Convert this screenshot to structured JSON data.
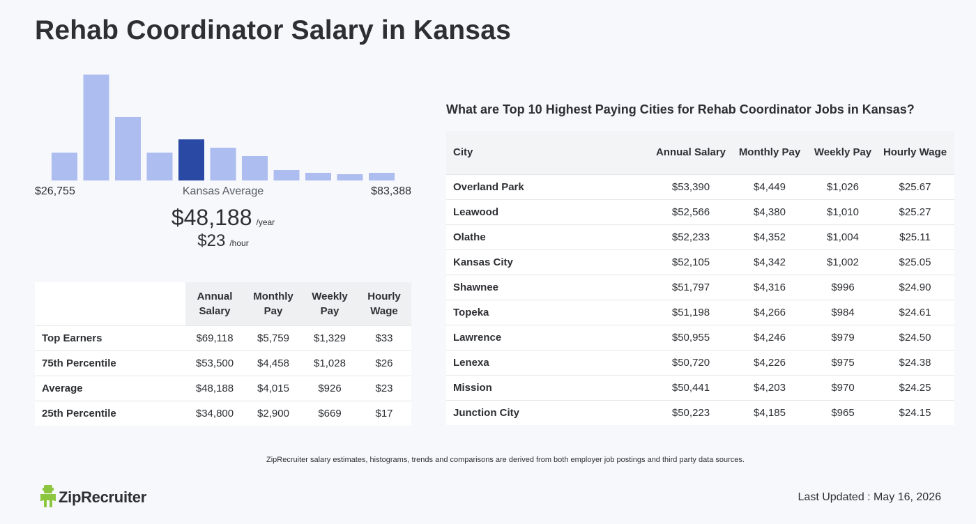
{
  "page": {
    "title": "Rehab Coordinator Salary in Kansas"
  },
  "histogram": {
    "min_label": "$26,755",
    "max_label": "$83,388",
    "mid_label": "Kansas Average",
    "bar_color": "#aebdf0",
    "highlight_color": "#2a49a5",
    "highlight_index": 4,
    "heights": [
      0.26,
      1.0,
      0.6,
      0.26,
      0.39,
      0.31,
      0.23,
      0.1,
      0.07,
      0.06,
      0.07
    ]
  },
  "average": {
    "yearly": "$48,188",
    "yearly_unit": "/year",
    "hourly": "$23",
    "hourly_unit": "/hour"
  },
  "percentiles": {
    "headers": [
      "Annual Salary",
      "Monthly Pay",
      "Weekly Pay",
      "Hourly Wage"
    ],
    "rows": [
      {
        "label": "Top Earners",
        "annual": "$69,118",
        "monthly": "$5,759",
        "weekly": "$1,329",
        "hourly": "$33"
      },
      {
        "label": "75th Percentile",
        "annual": "$53,500",
        "monthly": "$4,458",
        "weekly": "$1,028",
        "hourly": "$26"
      },
      {
        "label": "Average",
        "annual": "$48,188",
        "monthly": "$4,015",
        "weekly": "$926",
        "hourly": "$23"
      },
      {
        "label": "25th Percentile",
        "annual": "$34,800",
        "monthly": "$2,900",
        "weekly": "$669",
        "hourly": "$17"
      }
    ]
  },
  "cities": {
    "title": "What are Top 10 Highest Paying Cities for Rehab Coordinator Jobs in Kansas?",
    "headers": [
      "City",
      "Annual Salary",
      "Monthly Pay",
      "Weekly Pay",
      "Hourly Wage"
    ],
    "rows": [
      {
        "city": "Overland Park",
        "annual": "$53,390",
        "monthly": "$4,449",
        "weekly": "$1,026",
        "hourly": "$25.67"
      },
      {
        "city": "Leawood",
        "annual": "$52,566",
        "monthly": "$4,380",
        "weekly": "$1,010",
        "hourly": "$25.27"
      },
      {
        "city": "Olathe",
        "annual": "$52,233",
        "monthly": "$4,352",
        "weekly": "$1,004",
        "hourly": "$25.11"
      },
      {
        "city": "Kansas City",
        "annual": "$52,105",
        "monthly": "$4,342",
        "weekly": "$1,002",
        "hourly": "$25.05"
      },
      {
        "city": "Shawnee",
        "annual": "$51,797",
        "monthly": "$4,316",
        "weekly": "$996",
        "hourly": "$24.90"
      },
      {
        "city": "Topeka",
        "annual": "$51,198",
        "monthly": "$4,266",
        "weekly": "$984",
        "hourly": "$24.61"
      },
      {
        "city": "Lawrence",
        "annual": "$50,955",
        "monthly": "$4,246",
        "weekly": "$979",
        "hourly": "$24.50"
      },
      {
        "city": "Lenexa",
        "annual": "$50,720",
        "monthly": "$4,226",
        "weekly": "$975",
        "hourly": "$24.38"
      },
      {
        "city": "Mission",
        "annual": "$50,441",
        "monthly": "$4,203",
        "weekly": "$970",
        "hourly": "$24.25"
      },
      {
        "city": "Junction City",
        "annual": "$50,223",
        "monthly": "$4,185",
        "weekly": "$965",
        "hourly": "$24.15"
      }
    ]
  },
  "footer": {
    "disclaimer": "ZipRecruiter salary estimates, histograms, trends and comparisons are derived from both employer job postings and third party data sources.",
    "logo_text": "ZipRecruiter",
    "logo_color": "#8cc63f",
    "updated_label": "Last Updated : ",
    "updated_date": "May 16, 2026"
  }
}
